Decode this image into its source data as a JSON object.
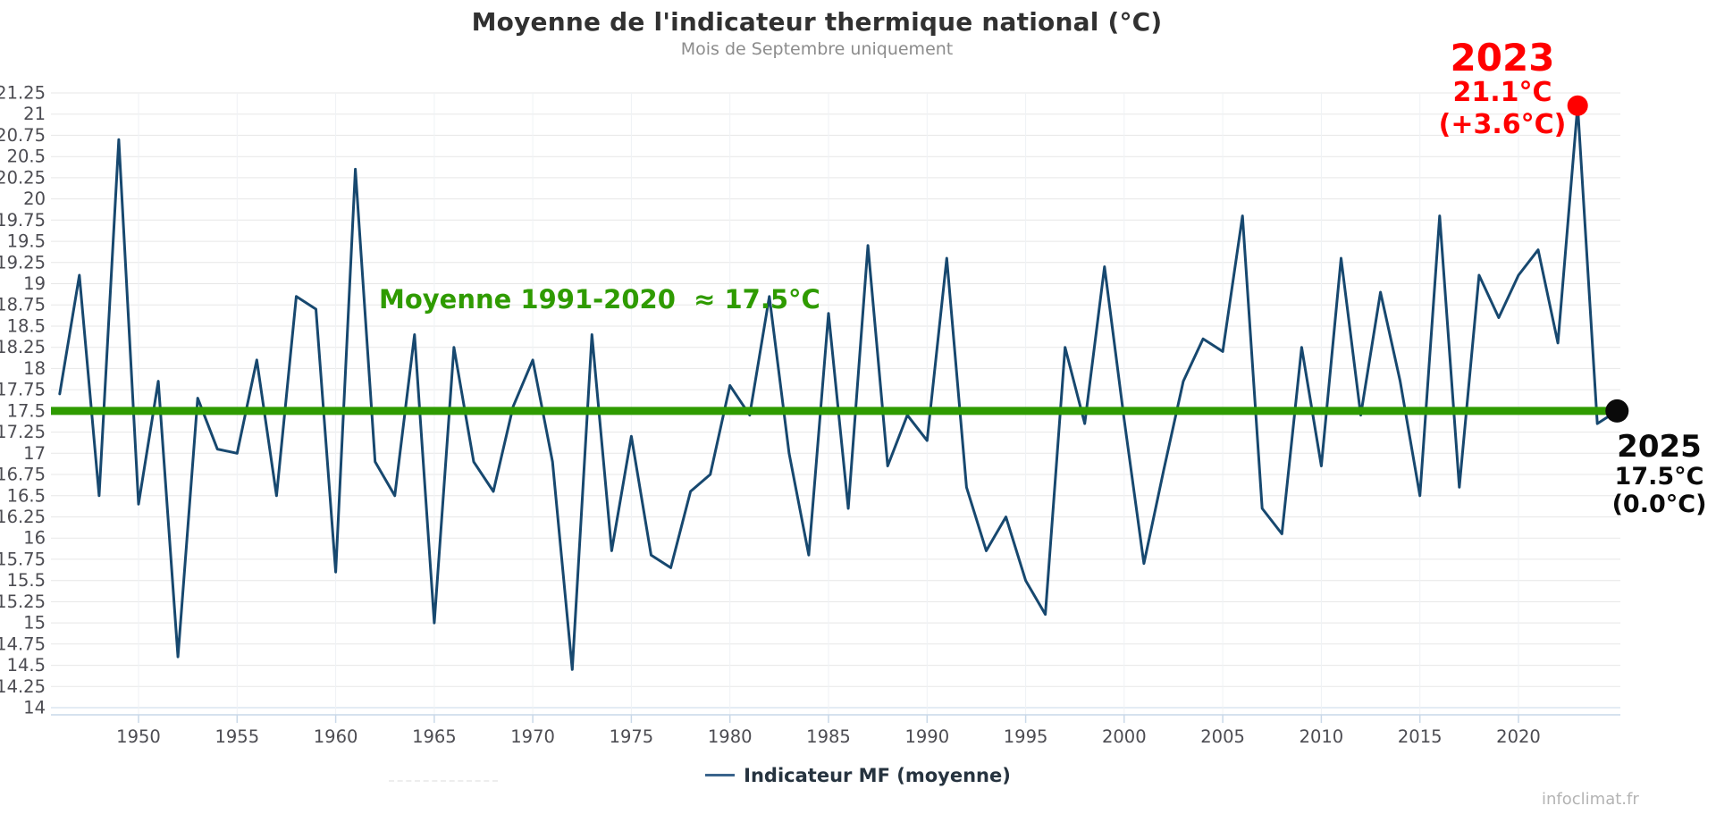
{
  "title": "Moyenne de l'indicateur thermique national (°C)",
  "subtitle": "Mois de Septembre uniquement",
  "watermark": "infoclimat.fr",
  "legend": {
    "series_label": "Indicateur MF (moyenne)"
  },
  "annotations": {
    "mean_line_label": "Moyenne 1991-2020  ≈ 17.5°C",
    "record_2023": {
      "year": "2023",
      "temp": "21.1°C",
      "anomaly": "(+3.6°C)"
    },
    "latest_2025": {
      "year": "2025",
      "temp": "17.5°C",
      "anomaly": "(0.0°C)"
    }
  },
  "colors": {
    "series_line": "#17486f",
    "reference_green": "#2f9b00",
    "record_red": "#ff0000",
    "latest_black": "#0a0a0a",
    "gridline": "#e7e7e7",
    "vertical_gridline": "#eff2f5",
    "axis_line": "#c9d8e8",
    "tick_label": "#4c4c52"
  },
  "chart_data": {
    "type": "line",
    "title": "Moyenne de l'indicateur thermique national (°C)",
    "subtitle": "Mois de Septembre uniquement",
    "xlabel": "",
    "ylabel": "",
    "ylim": [
      14,
      21.25
    ],
    "ytick_step": 0.25,
    "xticks": [
      1950,
      1955,
      1960,
      1965,
      1970,
      1975,
      1980,
      1985,
      1990,
      1995,
      2000,
      2005,
      2010,
      2015,
      2020
    ],
    "grid": true,
    "legend_position": "bottom",
    "series": [
      {
        "name": "Indicateur MF (moyenne)",
        "x": [
          1946,
          1947,
          1948,
          1949,
          1950,
          1951,
          1952,
          1953,
          1954,
          1955,
          1956,
          1957,
          1958,
          1959,
          1960,
          1961,
          1962,
          1963,
          1964,
          1965,
          1966,
          1967,
          1968,
          1969,
          1970,
          1971,
          1972,
          1973,
          1974,
          1975,
          1976,
          1977,
          1978,
          1979,
          1980,
          1981,
          1982,
          1983,
          1984,
          1985,
          1986,
          1987,
          1988,
          1989,
          1990,
          1991,
          1992,
          1993,
          1994,
          1995,
          1996,
          1997,
          1998,
          1999,
          2000,
          2001,
          2002,
          2003,
          2004,
          2005,
          2006,
          2007,
          2008,
          2009,
          2010,
          2011,
          2012,
          2013,
          2014,
          2015,
          2016,
          2017,
          2018,
          2019,
          2020,
          2021,
          2022,
          2023,
          2024,
          2025
        ],
        "values": [
          17.7,
          19.1,
          16.5,
          20.7,
          16.4,
          17.85,
          14.6,
          17.65,
          17.05,
          17.0,
          18.1,
          16.5,
          18.85,
          18.7,
          15.6,
          20.35,
          16.9,
          16.5,
          18.4,
          15.0,
          18.25,
          16.9,
          16.55,
          17.55,
          18.1,
          16.9,
          14.45,
          18.4,
          15.85,
          17.2,
          15.8,
          15.65,
          16.55,
          16.75,
          17.8,
          17.45,
          18.85,
          17.0,
          15.8,
          18.65,
          16.35,
          19.45,
          16.85,
          17.45,
          17.15,
          19.3,
          16.6,
          15.85,
          16.25,
          15.5,
          15.1,
          18.25,
          17.35,
          19.2,
          17.4,
          15.7,
          16.8,
          17.85,
          18.35,
          18.2,
          19.8,
          16.35,
          16.05,
          18.25,
          16.85,
          19.3,
          17.45,
          18.9,
          17.85,
          16.5,
          19.8,
          16.6,
          19.1,
          18.6,
          19.1,
          19.4,
          18.3,
          21.1,
          17.35,
          17.5
        ]
      }
    ],
    "reference_line": {
      "label": "Moyenne 1991-2020 ≈ 17.5°C",
      "value": 17.5
    },
    "highlighted_points": [
      {
        "year": 2023,
        "value": 21.1,
        "label": "2023 21.1°C (+3.6°C)",
        "color": "#ff0000"
      },
      {
        "year": 2025,
        "value": 17.5,
        "label": "2025 17.5°C (0.0°C)",
        "color": "#0a0a0a"
      }
    ]
  }
}
